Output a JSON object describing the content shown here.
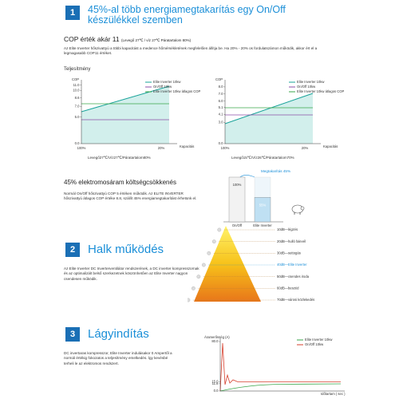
{
  "section1": {
    "number": "1",
    "title": "45%-al több energiamegtakarítás egy On/Off készülékkel szemben",
    "cop_heading": "COP érték akár 11",
    "cop_condition": "(Levegő 27℃ / víz 27℃ Páratartalom 80%)",
    "paragraph": "Az Elite Inverter hőszivattyú a többi kapacitást a medence hőmérsékletének megfelelően állítja be. Ha 20% - 20% os fordulatszámon működik, akkor ért el a legmagasabb COP11 értéket.",
    "performance_label": "Teljesítmény",
    "chart_left": {
      "y_label": "COP",
      "ylim": [
        0,
        12
      ],
      "yticks": [
        {
          "value": 11,
          "label": "11.0"
        },
        {
          "value": 10,
          "label": "10.0"
        },
        {
          "value": 8.6,
          "label": "8.6"
        },
        {
          "value": 7,
          "label": "7.0"
        },
        {
          "value": 5,
          "label": "5.0"
        },
        {
          "value": 0,
          "label": "0.0"
        }
      ],
      "x_start": "100%",
      "x_end": "20%",
      "x_label": "Kapacitás",
      "legend": [
        "Elite Inverter 10kw",
        "On/Off 10kw",
        "Elite Inverter 10kw átlagos COP"
      ],
      "caption": "Levegő27℃/Víz27℃/Páratartalom80%"
    },
    "chart_right": {
      "y_label": "COP",
      "ylim": [
        0,
        9
      ],
      "yticks": [
        {
          "value": 8,
          "label": "8.0"
        },
        {
          "value": 7,
          "label": "7.0"
        },
        {
          "value": 6,
          "label": "6.0"
        },
        5.1,
        4.1,
        {
          "value": 3,
          "label": "3.0"
        },
        {
          "value": 0,
          "label": "0.0"
        }
      ],
      "x_start": "100%",
      "x_end": "20%",
      "x_label": "Kapacitás",
      "legend": [
        "Elite Inverter 10kw",
        "On/Off 10kw",
        "Elite Inverter 10kw átlagos COP"
      ],
      "caption": "Levegő15℃/Víz26℃/Páratartalom70%"
    },
    "savings_heading": "45% elektromosáram költségcsökkenés",
    "savings_paragraph": "Normál On/Off hőszivattyú COP 5 értéken működik. Az ELITE INVERTER hőszivattyú átlagos COP értéke 8.8, szállít 45% energiamegtakarítást érhetünk el.",
    "savings_chart": {
      "annotation": "Megtakarítás 45%",
      "ylim": [
        0,
        100
      ],
      "bars": [
        {
          "label": "On/Off",
          "value": 100,
          "value_label": "100%"
        },
        {
          "label": "Elite Inverter",
          "value": 55,
          "value_label": "55%"
        }
      ]
    }
  },
  "section2": {
    "number": "2",
    "title": "Halk működés",
    "paragraph": "Az Elite Inverter DC Inverterventilátor rendszerének, a DC inverter kompresszornak és az optimalizált belső szerkezetnek köszönhetően az Elite Inverter nagyon csendesen működik.",
    "noise_levels": [
      "10dB—légzés",
      "20dB—hulló falevél",
      "30dB—suttogás",
      "40dB—Elite Inverter",
      "50dB—csendes iroda",
      "60dB—beszéd",
      "70dB—városi közlekedés"
    ]
  },
  "section3": {
    "number": "3",
    "title": "Lágyindítás",
    "paragraph": "DC invertaras kompresszor, Elite Inverter indulásakor 0 Ampertől a normál értékig fokozatos a teljesítmény emelkedés. Így kevésbé terheli le az elektromos rendszert.",
    "chart": {
      "y_label": "Áramerősség (A)",
      "x_label": "Időtartam ( sec )",
      "ylim": [
        0,
        80
      ],
      "yticks": [
        {
          "value": 80,
          "label": "80.0"
        },
        {
          "value": 15,
          "label": "15.0"
        },
        11.8,
        {
          "value": 0,
          "label": "0.0"
        }
      ],
      "legend": [
        "Elite Inverter 10kw",
        "On/Off 10kw"
      ]
    }
  }
}
